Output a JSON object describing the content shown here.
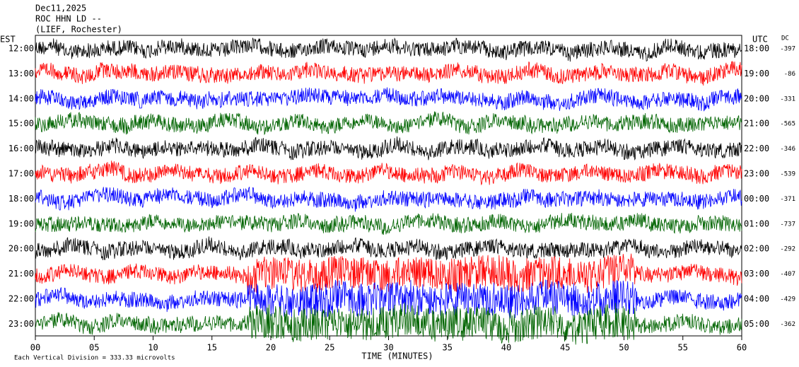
{
  "chart_data": {
    "type": "helicorder",
    "title_lines": [
      "Dec11,2025",
      "ROC HHN LD --",
      "(LIEF, Rochester)"
    ],
    "left_axis_title": "EST",
    "right_axis_title": "UTC",
    "dc_title": "DC",
    "xlabel": "TIME (MINUTES)",
    "xlim": [
      0,
      60
    ],
    "xticks": [
      {
        "value": 0,
        "label": "00"
      },
      {
        "value": 5,
        "label": "05"
      },
      10,
      15,
      20,
      25,
      30,
      35,
      40,
      45,
      50,
      55,
      60
    ],
    "footnote": "Each Vertical Division = 333.33 microvolts",
    "rows": [
      {
        "est": "12:00",
        "utc": "18:00",
        "dc": -397,
        "color": "#000000"
      },
      {
        "est": "13:00",
        "utc": "19:00",
        "dc": -86,
        "color": "#ff0000"
      },
      {
        "est": "14:00",
        "utc": "20:00",
        "dc": -331,
        "color": "#0000ff"
      },
      {
        "est": "15:00",
        "utc": "21:00",
        "dc": -565,
        "color": "#006400"
      },
      {
        "est": "16:00",
        "utc": "22:00",
        "dc": -346,
        "color": "#000000"
      },
      {
        "est": "17:00",
        "utc": "23:00",
        "dc": -539,
        "color": "#ff0000"
      },
      {
        "est": "18:00",
        "utc": "00:00",
        "dc": -371,
        "color": "#0000ff"
      },
      {
        "est": "19:00",
        "utc": "01:00",
        "dc": -737,
        "color": "#006400"
      },
      {
        "est": "20:00",
        "utc": "02:00",
        "dc": -292,
        "color": "#000000"
      },
      {
        "est": "21:00",
        "utc": "03:00",
        "dc": -407,
        "color": "#ff0000"
      },
      {
        "est": "22:00",
        "utc": "04:00",
        "dc": -429,
        "color": "#0000ff"
      },
      {
        "est": "23:00",
        "utc": "05:00",
        "dc": -362,
        "color": "#006400"
      }
    ]
  }
}
